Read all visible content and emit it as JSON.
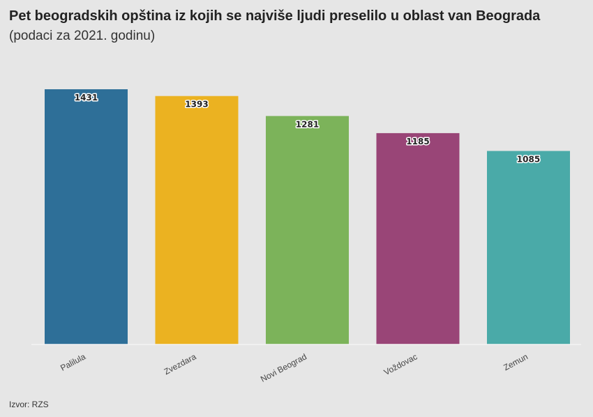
{
  "header": {
    "title": "Pet beogradskih opština iz kojih se najviše ljudi preselilo u oblast van Beograda",
    "subtitle": "(podaci za 2021. godinu)"
  },
  "footer": {
    "source": "Izvor: RZS"
  },
  "chart_data": {
    "type": "bar",
    "categories": [
      "Palilula",
      "Zvezdara",
      "Novi Beograd",
      "Voždovac",
      "Zemun"
    ],
    "values": [
      1431,
      1393,
      1281,
      1185,
      1085
    ],
    "colors": [
      "#2e6f98",
      "#ebb221",
      "#7cb35a",
      "#994577",
      "#4aaaa8"
    ],
    "ylim": [
      0,
      1431
    ],
    "grid": false,
    "data_labels": true,
    "xlabel": "",
    "ylabel": ""
  }
}
